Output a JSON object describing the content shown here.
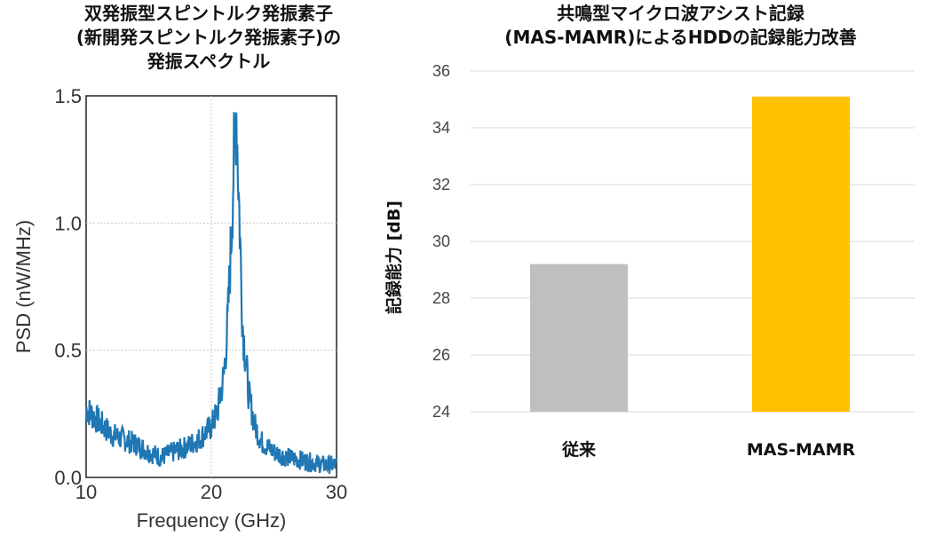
{
  "chart_data": [
    {
      "type": "line",
      "title_lines": [
        "双発振型スピントルク発振素子",
        "(新開発スピントルク発振素子)の",
        "発振スペクトル"
      ],
      "xlabel": "Frequency (GHz)",
      "ylabel": "PSD (nW/MHz)",
      "xlim": [
        10,
        30
      ],
      "ylim": [
        0.0,
        1.5
      ],
      "x_ticks": [
        "10",
        "20",
        "30"
      ],
      "y_ticks": [
        "0.0",
        "0.5",
        "1.0",
        "1.5"
      ],
      "grid": true,
      "line_color": "#1f77b4",
      "series": [
        {
          "x": [
            10,
            11,
            12,
            13,
            14,
            15,
            16,
            17,
            18,
            19,
            20,
            20.5,
            21,
            21.3,
            21.6,
            21.8,
            22.0,
            22.2,
            22.5,
            23,
            23.5,
            24,
            25,
            26,
            27,
            28,
            29,
            30
          ],
          "values": [
            0.27,
            0.22,
            0.17,
            0.15,
            0.13,
            0.1,
            0.08,
            0.1,
            0.12,
            0.15,
            0.2,
            0.26,
            0.4,
            0.6,
            0.95,
            1.25,
            1.45,
            1.1,
            0.6,
            0.32,
            0.2,
            0.14,
            0.1,
            0.08,
            0.07,
            0.06,
            0.05,
            0.05
          ]
        }
      ]
    },
    {
      "type": "bar",
      "title_lines": [
        "共鳴型マイクロ波アシスト記録",
        "(MAS-MAMR)によるHDDの記録能力改善"
      ],
      "categories": [
        "従来",
        "MAS-MAMR"
      ],
      "values": [
        29.2,
        35.1
      ],
      "colors": [
        "#bfbfbf",
        "#ffc000"
      ],
      "ylabel": "記録能力 [dB]",
      "ylim": [
        24,
        36
      ],
      "y_ticks": [
        "24",
        "26",
        "28",
        "30",
        "32",
        "34",
        "36"
      ],
      "grid": true
    }
  ]
}
